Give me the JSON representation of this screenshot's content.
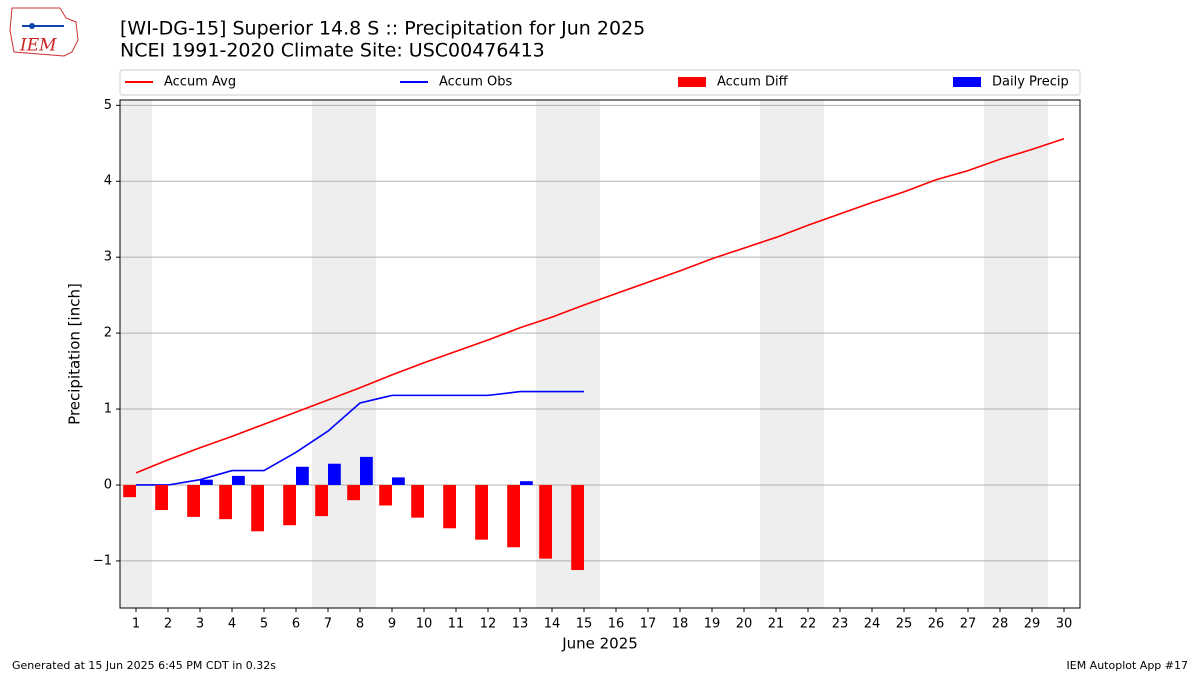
{
  "chart_data": {
    "type": "combo",
    "title": "[WI-DG-15] Superior 14.8 S :: Precipitation for Jun 2025",
    "subtitle": "NCEI 1991-2020 Climate Site: USC00476413",
    "xlabel": "June 2025",
    "ylabel": "Precipitation [inch]",
    "x": [
      1,
      2,
      3,
      4,
      5,
      6,
      7,
      8,
      9,
      10,
      11,
      12,
      13,
      14,
      15,
      16,
      17,
      18,
      19,
      20,
      21,
      22,
      23,
      24,
      25,
      26,
      27,
      28,
      29,
      30
    ],
    "xlim": [
      0.5,
      30.5
    ],
    "xticks": [
      1,
      2,
      3,
      4,
      5,
      6,
      7,
      8,
      9,
      10,
      11,
      12,
      13,
      14,
      15,
      16,
      17,
      18,
      19,
      20,
      21,
      22,
      23,
      24,
      25,
      26,
      27,
      28,
      29,
      30
    ],
    "ylim": [
      -1.62,
      5.07
    ],
    "yticks": [
      {
        "value": -1,
        "label": "−1"
      },
      0,
      1,
      2,
      3,
      4,
      5
    ],
    "grid": true,
    "shaded_spans": [
      [
        0.5,
        1.5
      ],
      [
        6.5,
        8.5
      ],
      [
        13.5,
        15.5
      ],
      [
        20.5,
        22.5
      ],
      [
        27.5,
        29.5
      ]
    ],
    "shade_color": "#eeeeee",
    "series": [
      {
        "name": "Accum Avg",
        "kind": "line",
        "color": "#ff0000",
        "values": [
          0.16,
          0.33,
          0.49,
          0.64,
          0.8,
          0.96,
          1.12,
          1.28,
          1.45,
          1.61,
          1.76,
          1.91,
          2.07,
          2.21,
          2.37,
          2.52,
          2.67,
          2.82,
          2.98,
          3.12,
          3.26,
          3.42,
          3.57,
          3.72,
          3.86,
          4.02,
          4.14,
          4.29,
          4.42,
          4.56
        ]
      },
      {
        "name": "Accum Obs",
        "kind": "line",
        "color": "#0000ff",
        "values": [
          0,
          0,
          0.07,
          0.19,
          0.19,
          0.43,
          0.71,
          1.08,
          1.18,
          1.18,
          1.18,
          1.18,
          1.23,
          1.23,
          1.23,
          null,
          null,
          null,
          null,
          null,
          null,
          null,
          null,
          null,
          null,
          null,
          null,
          null,
          null,
          null
        ]
      },
      {
        "name": "Accum Diff",
        "kind": "bar",
        "color": "#ff0000",
        "values": [
          -0.16,
          -0.33,
          -0.42,
          -0.45,
          -0.61,
          -0.53,
          -0.41,
          -0.2,
          -0.27,
          -0.43,
          -0.57,
          -0.72,
          -0.82,
          -0.97,
          -1.12,
          null,
          null,
          null,
          null,
          null,
          null,
          null,
          null,
          null,
          null,
          null,
          null,
          null,
          null,
          null
        ]
      },
      {
        "name": "Daily Precip",
        "kind": "bar",
        "color": "#0000ff",
        "values": [
          0,
          0,
          0.07,
          0.12,
          0,
          0.24,
          0.28,
          0.37,
          0.1,
          0,
          0,
          0,
          0.05,
          0,
          0,
          null,
          null,
          null,
          null,
          null,
          null,
          null,
          null,
          null,
          null,
          null,
          null,
          null,
          null,
          null
        ]
      }
    ],
    "logo_text": "IEM",
    "footer_left": "Generated at 15 Jun 2025 6:45 PM CDT in 0.32s",
    "footer_right": "IEM Autoplot App #17"
  }
}
